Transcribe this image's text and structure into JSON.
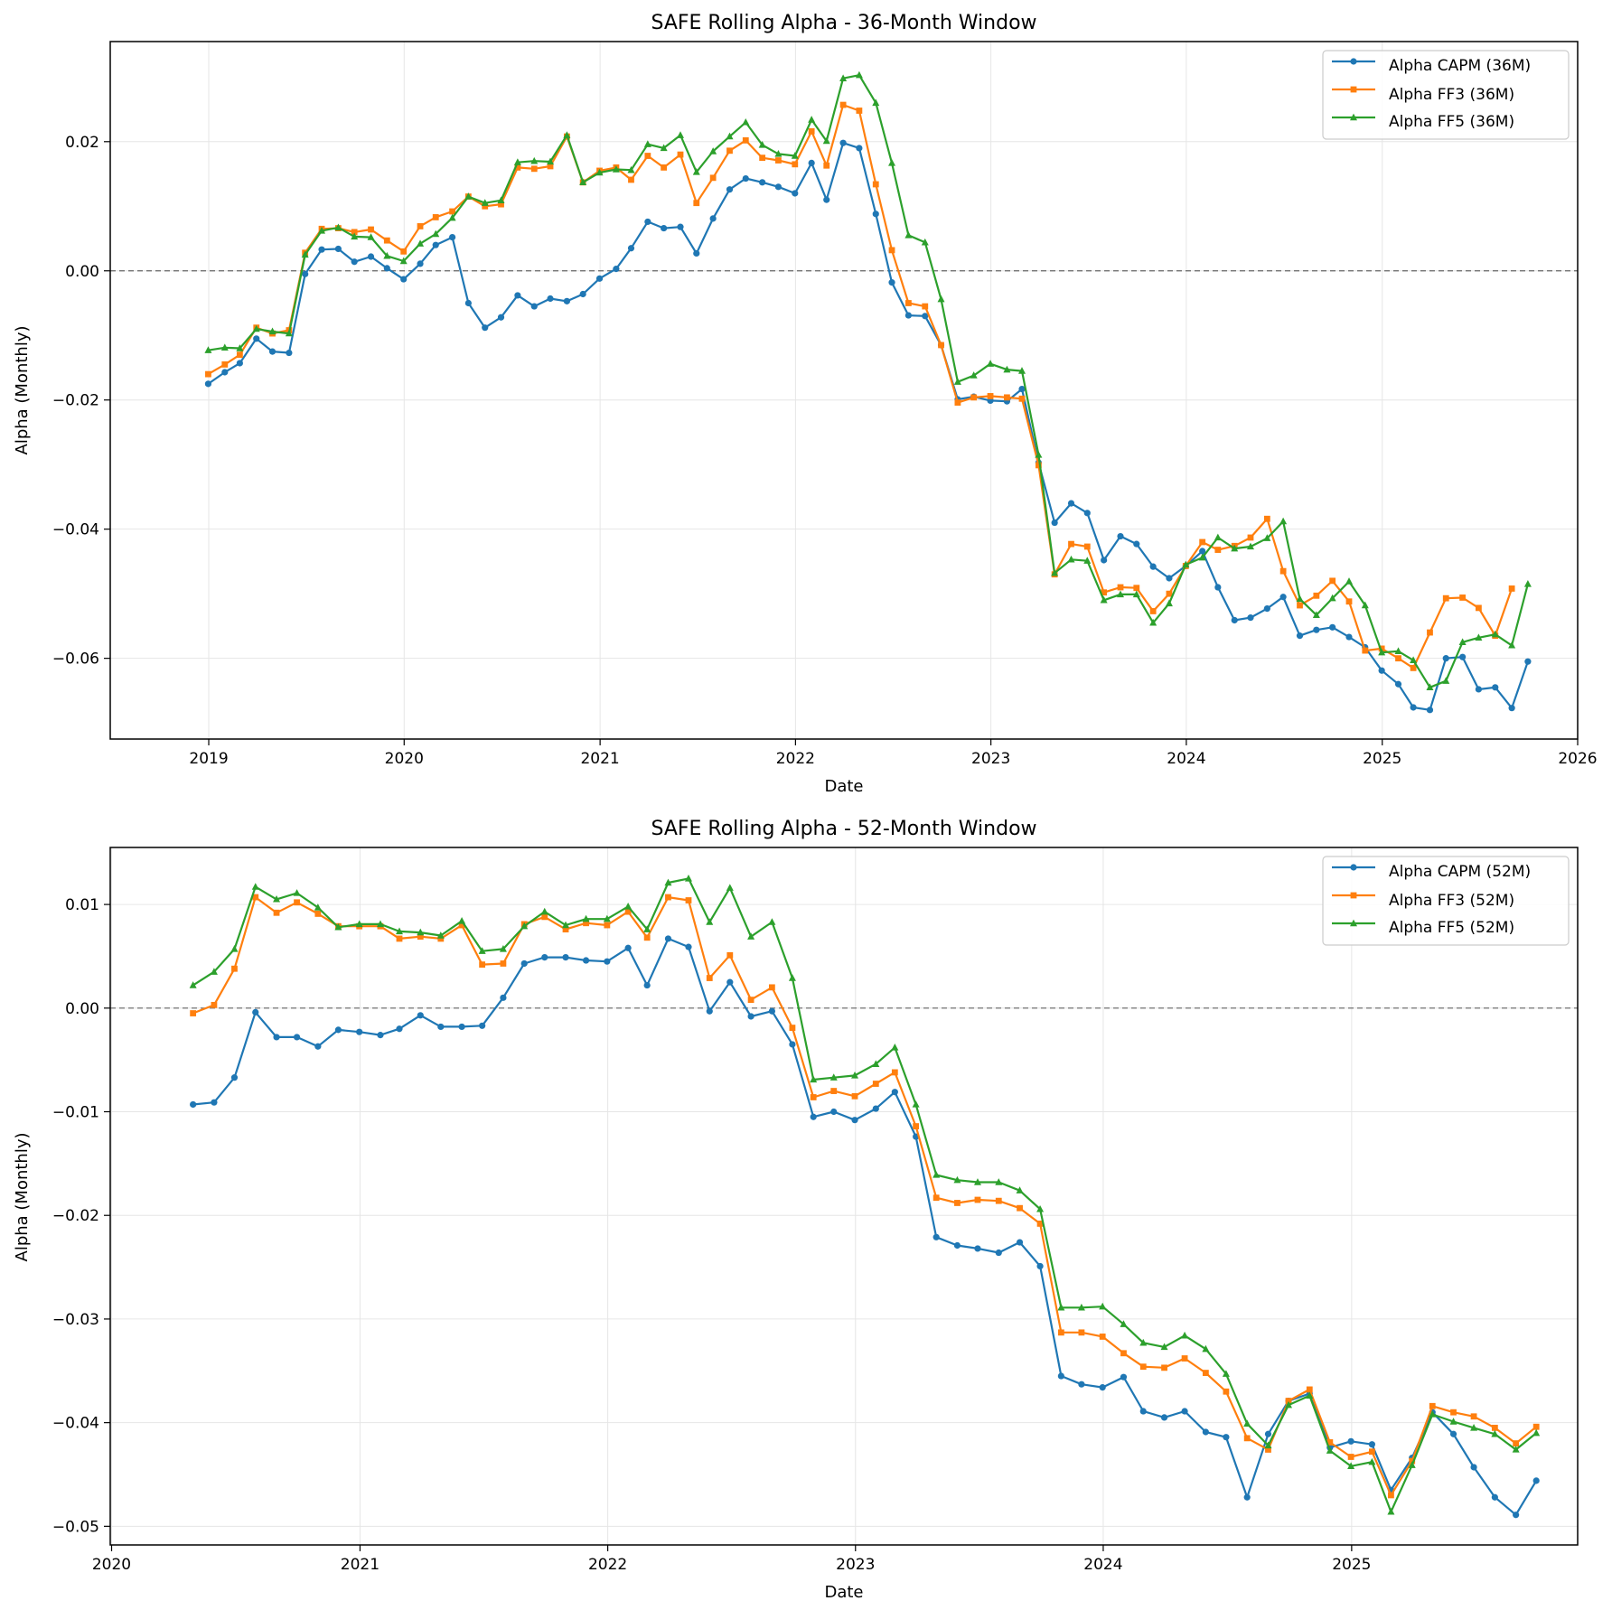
{
  "colors": {
    "capm": "#1f77b4",
    "ff3": "#ff7f0e",
    "ff5": "#2ca02c",
    "grid": "#e6e6e6",
    "zero": "#666666"
  },
  "chart_data": [
    {
      "type": "line",
      "title": "SAFE Rolling Alpha - 36-Month Window",
      "xlabel": "Date",
      "ylabel": "Alpha (Monthly)",
      "xlim": [
        "2018-07-01",
        "2026-01-01"
      ],
      "ylim": [
        -0.0725,
        0.0355
      ],
      "x_ticks": [
        "2019",
        "2020",
        "2021",
        "2022",
        "2023",
        "2024",
        "2025",
        "2026"
      ],
      "y_ticks": [
        -0.06,
        -0.04,
        -0.02,
        0.0,
        0.02
      ],
      "y_tick_labels": [
        "−0.06",
        "−0.04",
        "−0.02",
        "0.00",
        "0.02"
      ],
      "grid": true,
      "zero_line": true,
      "legend": "top-right",
      "start_month": "2018-12",
      "series": [
        {
          "name": "Alpha CAPM (36M)",
          "color_key": "capm",
          "marker": "circle",
          "values": [
            -0.0175,
            -0.0157,
            -0.0143,
            -0.0105,
            -0.0125,
            -0.0127,
            -0.0005,
            0.0033,
            0.0034,
            0.0014,
            0.0022,
            0.0004,
            -0.0013,
            0.0011,
            0.004,
            0.0052,
            -0.005,
            -0.0088,
            -0.0072,
            -0.0038,
            -0.0055,
            -0.0043,
            -0.0047,
            -0.0036,
            -0.0012,
            0.0003,
            0.0035,
            0.0076,
            0.0066,
            0.0068,
            0.0027,
            0.0081,
            0.0126,
            0.0143,
            0.0137,
            0.013,
            0.012,
            0.0167,
            0.011,
            0.0198,
            0.019,
            0.0088,
            -0.0018,
            -0.0069,
            -0.007,
            -0.0115,
            -0.0199,
            -0.0195,
            -0.0201,
            -0.0202,
            -0.0183,
            -0.0297,
            -0.039,
            -0.036,
            -0.0375,
            -0.0448,
            -0.0411,
            -0.0423,
            -0.0458,
            -0.0476,
            -0.0457,
            -0.0434,
            -0.049,
            -0.0541,
            -0.0537,
            -0.0523,
            -0.0505,
            -0.0565,
            -0.0556,
            -0.0552,
            -0.0567,
            -0.0583,
            -0.0619,
            -0.064,
            -0.0676,
            -0.068,
            -0.06,
            -0.0598,
            -0.0648,
            -0.0645,
            -0.0677,
            -0.0605
          ]
        },
        {
          "name": "Alpha FF3 (36M)",
          "color_key": "ff3",
          "marker": "square",
          "values": [
            -0.016,
            -0.0145,
            -0.013,
            -0.0088,
            -0.0097,
            -0.0092,
            0.0028,
            0.0065,
            0.0066,
            0.006,
            0.0064,
            0.0047,
            0.003,
            0.0069,
            0.0083,
            0.0092,
            0.0115,
            0.01,
            0.0103,
            0.016,
            0.0158,
            0.0162,
            0.0208,
            0.0137,
            0.0155,
            0.016,
            0.0141,
            0.0178,
            0.016,
            0.018,
            0.0105,
            0.0144,
            0.0186,
            0.0202,
            0.0175,
            0.0171,
            0.0165,
            0.0216,
            0.0163,
            0.0257,
            0.0248,
            0.0134,
            0.0032,
            -0.005,
            -0.0055,
            -0.0115,
            -0.0204,
            -0.0196,
            -0.0194,
            -0.0196,
            -0.0198,
            -0.0301,
            -0.047,
            -0.0423,
            -0.0427,
            -0.0498,
            -0.049,
            -0.0491,
            -0.0527,
            -0.05,
            -0.0457,
            -0.042,
            -0.0432,
            -0.0426,
            -0.0413,
            -0.0384,
            -0.0465,
            -0.0518,
            -0.0503,
            -0.048,
            -0.0512,
            -0.0588,
            -0.0585,
            -0.06,
            -0.0615,
            -0.056,
            -0.0507,
            -0.0506,
            -0.0522,
            -0.0565,
            -0.0492
          ]
        },
        {
          "name": "Alpha FF5 (36M)",
          "color_key": "ff5",
          "marker": "triangle",
          "values": [
            -0.0123,
            -0.0119,
            -0.012,
            -0.009,
            -0.0094,
            -0.0097,
            0.0025,
            0.0062,
            0.0067,
            0.0053,
            0.0052,
            0.0023,
            0.0015,
            0.0042,
            0.0057,
            0.0082,
            0.0115,
            0.0105,
            0.0109,
            0.0168,
            0.017,
            0.0169,
            0.021,
            0.0137,
            0.0152,
            0.0157,
            0.0156,
            0.0196,
            0.019,
            0.021,
            0.0153,
            0.0185,
            0.0208,
            0.023,
            0.0195,
            0.0181,
            0.0178,
            0.0234,
            0.0201,
            0.0298,
            0.0303,
            0.026,
            0.0167,
            0.0055,
            0.0044,
            -0.0044,
            -0.0172,
            -0.0162,
            -0.0144,
            -0.0153,
            -0.0155,
            -0.0285,
            -0.0468,
            -0.0447,
            -0.0449,
            -0.051,
            -0.0501,
            -0.0501,
            -0.0545,
            -0.0515,
            -0.0455,
            -0.0444,
            -0.0413,
            -0.043,
            -0.0427,
            -0.0414,
            -0.0388,
            -0.0508,
            -0.0533,
            -0.0507,
            -0.0481,
            -0.0518,
            -0.0591,
            -0.0589,
            -0.0603,
            -0.0645,
            -0.0635,
            -0.0575,
            -0.0568,
            -0.0563,
            -0.058,
            -0.0485
          ]
        }
      ]
    },
    {
      "type": "line",
      "title": "SAFE Rolling Alpha - 52-Month Window",
      "xlabel": "Date",
      "ylabel": "Alpha (Monthly)",
      "xlim": [
        "2019-12-30",
        "2025-11-30"
      ],
      "ylim": [
        -0.0518,
        0.0155
      ],
      "x_ticks": [
        "2020",
        "2021",
        "2022",
        "2023",
        "2024",
        "2025"
      ],
      "y_ticks": [
        -0.05,
        -0.04,
        -0.03,
        -0.02,
        -0.01,
        0.0,
        0.01
      ],
      "y_tick_labels": [
        "−0.05",
        "−0.04",
        "−0.03",
        "−0.02",
        "−0.01",
        "0.00",
        "0.01"
      ],
      "grid": true,
      "zero_line": true,
      "legend": "top-right",
      "start_month": "2020-04",
      "series": [
        {
          "name": "Alpha CAPM (52M)",
          "color_key": "capm",
          "marker": "circle",
          "values": [
            -0.0093,
            -0.0091,
            -0.0067,
            -0.0004,
            -0.0028,
            -0.0028,
            -0.0037,
            -0.0021,
            -0.0023,
            -0.0026,
            -0.002,
            -0.0007,
            -0.0018,
            -0.0018,
            -0.0017,
            0.001,
            0.0043,
            0.0049,
            0.0049,
            0.0046,
            0.0045,
            0.0058,
            0.0022,
            0.0067,
            0.0059,
            -0.0003,
            0.0025,
            -0.0008,
            -0.0003,
            -0.0035,
            -0.0105,
            -0.01,
            -0.0108,
            -0.0097,
            -0.0081,
            -0.0124,
            -0.0221,
            -0.0229,
            -0.0232,
            -0.0236,
            -0.0226,
            -0.0249,
            -0.0355,
            -0.0363,
            -0.0366,
            -0.0356,
            -0.0389,
            -0.0395,
            -0.0389,
            -0.0409,
            -0.0414,
            -0.0472,
            -0.0411,
            -0.0379,
            -0.0372,
            -0.0424,
            -0.0418,
            -0.0421,
            -0.0465,
            -0.0434,
            -0.039,
            -0.0411,
            -0.0443,
            -0.0472,
            -0.0489,
            -0.0456
          ]
        },
        {
          "name": "Alpha FF3 (52M)",
          "color_key": "ff3",
          "marker": "square",
          "values": [
            -0.0005,
            0.0003,
            0.0038,
            0.0107,
            0.0092,
            0.0102,
            0.0091,
            0.0079,
            0.0079,
            0.0079,
            0.0067,
            0.0069,
            0.0067,
            0.008,
            0.0042,
            0.0043,
            0.0081,
            0.0088,
            0.0076,
            0.0082,
            0.008,
            0.0093,
            0.0068,
            0.0107,
            0.0104,
            0.0029,
            0.0051,
            0.0008,
            0.002,
            -0.0019,
            -0.0086,
            -0.008,
            -0.0085,
            -0.0073,
            -0.0062,
            -0.0114,
            -0.0183,
            -0.0188,
            -0.0185,
            -0.0186,
            -0.0193,
            -0.0208,
            -0.0313,
            -0.0313,
            -0.0317,
            -0.0333,
            -0.0346,
            -0.0347,
            -0.0338,
            -0.0352,
            -0.037,
            -0.0415,
            -0.0426,
            -0.0379,
            -0.0368,
            -0.0419,
            -0.0433,
            -0.0428,
            -0.047,
            -0.0437,
            -0.0384,
            -0.039,
            -0.0394,
            -0.0405,
            -0.042,
            -0.0404
          ]
        },
        {
          "name": "Alpha FF5 (52M)",
          "color_key": "ff5",
          "marker": "triangle",
          "values": [
            0.0022,
            0.0035,
            0.0057,
            0.0117,
            0.0105,
            0.0111,
            0.0097,
            0.0078,
            0.0081,
            0.0081,
            0.0074,
            0.0073,
            0.007,
            0.0084,
            0.0055,
            0.0057,
            0.0079,
            0.0093,
            0.008,
            0.0086,
            0.0086,
            0.0098,
            0.0076,
            0.0121,
            0.0125,
            0.0083,
            0.0116,
            0.0069,
            0.0083,
            0.0029,
            -0.0069,
            -0.0067,
            -0.0065,
            -0.0054,
            -0.0038,
            -0.0093,
            -0.0161,
            -0.0166,
            -0.0168,
            -0.0168,
            -0.0176,
            -0.0194,
            -0.0289,
            -0.0289,
            -0.0288,
            -0.0305,
            -0.0323,
            -0.0327,
            -0.0316,
            -0.0329,
            -0.0353,
            -0.0401,
            -0.0422,
            -0.0383,
            -0.0374,
            -0.0427,
            -0.0442,
            -0.0438,
            -0.0486,
            -0.0441,
            -0.0392,
            -0.0399,
            -0.0405,
            -0.0411,
            -0.0426,
            -0.041
          ]
        }
      ]
    }
  ]
}
